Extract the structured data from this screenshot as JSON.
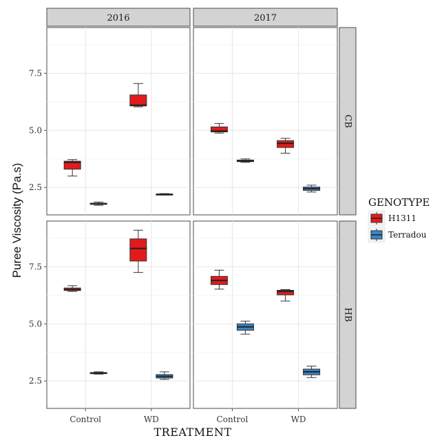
{
  "chart_data": {
    "type": "boxplot",
    "xlabel": "TREATMENT",
    "ylabel": "Puree Viscosity (Pa.s)",
    "categories": [
      "Control",
      "WD"
    ],
    "column_facets": [
      "2016",
      "2017"
    ],
    "row_facets": [
      "CB",
      "HB"
    ],
    "yticks": [
      2.5,
      5.0,
      7.5
    ],
    "ytick_labels": [
      "2.5",
      "5.0",
      "7.5"
    ],
    "ylim": [
      1.3,
      9.5
    ],
    "legend": {
      "title": "GENOTYPE",
      "placement": "right",
      "entries": [
        {
          "name": "H1311",
          "color": "#e31a1c"
        },
        {
          "name": "Terradou",
          "color": "#3a85c6"
        }
      ]
    },
    "panels": [
      {
        "col": "2016",
        "row": "CB",
        "boxes": [
          {
            "category": "Control",
            "genotype": "H1311",
            "min": 3.0,
            "q1": 3.3,
            "median": 3.6,
            "q3": 3.65,
            "max": 3.72
          },
          {
            "category": "Control",
            "genotype": "Terradou",
            "min": 1.72,
            "q1": 1.76,
            "median": 1.79,
            "q3": 1.81,
            "max": 1.86
          },
          {
            "category": "WD",
            "genotype": "H1311",
            "min": 6.03,
            "q1": 6.07,
            "median": 6.1,
            "q3": 6.55,
            "max": 7.05
          },
          {
            "category": "WD",
            "genotype": "Terradou",
            "min": 2.17,
            "q1": 2.19,
            "median": 2.2,
            "q3": 2.21,
            "max": 2.23
          }
        ]
      },
      {
        "col": "2017",
        "row": "CB",
        "boxes": [
          {
            "category": "Control",
            "genotype": "H1311",
            "min": 4.88,
            "q1": 4.93,
            "median": 4.97,
            "q3": 5.15,
            "max": 5.3
          },
          {
            "category": "Control",
            "genotype": "Terradou",
            "min": 3.6,
            "q1": 3.63,
            "median": 3.66,
            "q3": 3.7,
            "max": 3.75
          },
          {
            "category": "WD",
            "genotype": "H1311",
            "min": 4.0,
            "q1": 4.25,
            "median": 4.43,
            "q3": 4.55,
            "max": 4.65
          },
          {
            "category": "WD",
            "genotype": "Terradou",
            "min": 2.3,
            "q1": 2.37,
            "median": 2.45,
            "q3": 2.52,
            "max": 2.6
          }
        ]
      },
      {
        "col": "2016",
        "row": "HB",
        "boxes": [
          {
            "category": "Control",
            "genotype": "H1311",
            "min": 6.42,
            "q1": 6.46,
            "median": 6.5,
            "q3": 6.57,
            "max": 6.67
          },
          {
            "category": "Control",
            "genotype": "Terradou",
            "min": 2.8,
            "q1": 2.82,
            "median": 2.84,
            "q3": 2.87,
            "max": 2.9
          },
          {
            "category": "WD",
            "genotype": "H1311",
            "min": 7.25,
            "q1": 7.75,
            "median": 8.3,
            "q3": 8.72,
            "max": 9.1
          },
          {
            "category": "WD",
            "genotype": "Terradou",
            "min": 2.57,
            "q1": 2.63,
            "median": 2.7,
            "q3": 2.78,
            "max": 2.9
          }
        ]
      },
      {
        "col": "2017",
        "row": "HB",
        "boxes": [
          {
            "category": "Control",
            "genotype": "H1311",
            "min": 6.52,
            "q1": 6.72,
            "median": 6.9,
            "q3": 7.08,
            "max": 7.35
          },
          {
            "category": "Control",
            "genotype": "Terradou",
            "min": 4.55,
            "q1": 4.72,
            "median": 4.87,
            "q3": 5.0,
            "max": 5.12
          },
          {
            "category": "WD",
            "genotype": "H1311",
            "min": 6.0,
            "q1": 6.27,
            "median": 6.42,
            "q3": 6.47,
            "max": 6.5
          },
          {
            "category": "WD",
            "genotype": "Terradou",
            "min": 2.65,
            "q1": 2.77,
            "median": 2.9,
            "q3": 3.02,
            "max": 3.15
          }
        ]
      }
    ]
  }
}
